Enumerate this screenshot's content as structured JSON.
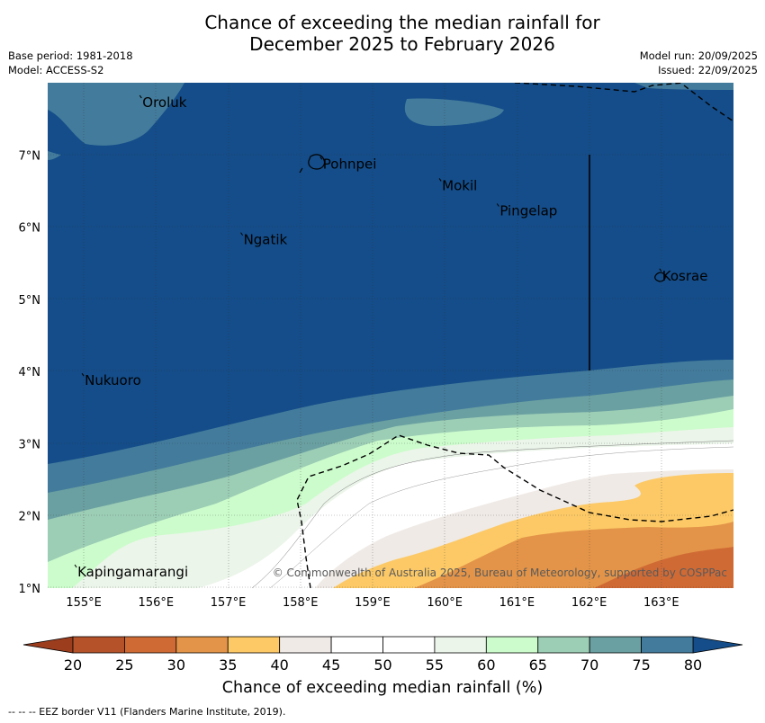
{
  "title": {
    "line1": "Chance of exceeding the median rainfall for",
    "line2": "December 2025 to February 2026"
  },
  "meta_left": {
    "base_period": "Base period: 1981-2018",
    "model": "Model: ACCESS-S2"
  },
  "meta_right": {
    "model_run": "Model run: 20/09/2025",
    "issued": "Issued: 22/09/2025"
  },
  "map": {
    "lon_range": [
      154.5,
      164.0
    ],
    "lat_range": [
      1.0,
      8.0
    ],
    "lon_ticks": [
      "155°E",
      "156°E",
      "157°E",
      "158°E",
      "159°E",
      "160°E",
      "161°E",
      "162°E",
      "163°E"
    ],
    "lat_ticks": [
      "1°N",
      "2°N",
      "3°N",
      "4°N",
      "5°N",
      "6°N",
      "7°N"
    ],
    "places": [
      {
        "name": "Oroluk",
        "lon": 155.8,
        "lat": 7.7
      },
      {
        "name": "Pohnpei",
        "lon": 158.3,
        "lat": 6.85
      },
      {
        "name": "Mokil",
        "lon": 159.95,
        "lat": 6.55
      },
      {
        "name": "Pingelap",
        "lon": 160.75,
        "lat": 6.2
      },
      {
        "name": "Ngatik",
        "lon": 157.2,
        "lat": 5.8
      },
      {
        "name": "Kosrae",
        "lon": 163.0,
        "lat": 5.3
      },
      {
        "name": "Nukuoro",
        "lon": 155.0,
        "lat": 3.85
      },
      {
        "name": "Kapingamarangi",
        "lon": 154.9,
        "lat": 1.2
      }
    ],
    "copyright": "© Commonwealth of Australia 2025, Bureau of Meteorology, supported by COSPPac"
  },
  "colorbar": {
    "ticks": [
      "20",
      "25",
      "30",
      "35",
      "40",
      "45",
      "50",
      "55",
      "60",
      "65",
      "70",
      "75",
      "80"
    ],
    "colors": {
      "lt20": "#9c3d1e",
      "c20_25": "#b5522a",
      "c25_30": "#d06a35",
      "c30_35": "#e39448",
      "c35_40": "#fcc966",
      "c40_45": "#efeae6",
      "c45_50": "#ffffff",
      "c50_55": "#ffffff",
      "c55_60": "#ebf5e9",
      "c60_65": "#ccfccc",
      "c65_70": "#9ccdb5",
      "c70_75": "#6aa0a1",
      "c75_80": "#437b9c",
      "gt80": "#144d89"
    },
    "label": "Chance of exceeding median rainfall (%)"
  },
  "footnote": "--  --  -- EEZ border V11 (Flanders Marine Institute, 2019)."
}
